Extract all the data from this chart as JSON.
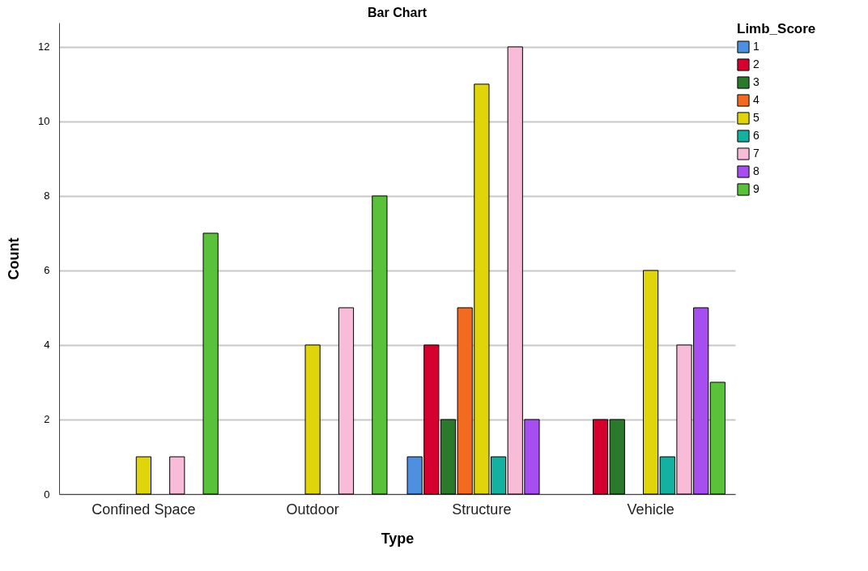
{
  "chart_data": {
    "type": "bar",
    "title": "Bar Chart",
    "xlabel": "Type",
    "ylabel": "Count",
    "legend_title": "Limb_Score",
    "categories": [
      "Confined Space",
      "Outdoor",
      "Structure",
      "Vehicle"
    ],
    "series": [
      {
        "name": "1",
        "color": "#4f8fe0",
        "values": [
          null,
          null,
          1,
          null
        ]
      },
      {
        "name": "2",
        "color": "#d6002f",
        "values": [
          null,
          null,
          4,
          2
        ]
      },
      {
        "name": "3",
        "color": "#2b7a2b",
        "values": [
          null,
          null,
          2,
          2
        ]
      },
      {
        "name": "4",
        "color": "#f26b21",
        "values": [
          null,
          null,
          5,
          null
        ]
      },
      {
        "name": "5",
        "color": "#e0d40a",
        "values": [
          1,
          4,
          11,
          6
        ]
      },
      {
        "name": "6",
        "color": "#14b0a0",
        "values": [
          null,
          null,
          1,
          1
        ]
      },
      {
        "name": "7",
        "color": "#f8bcd8",
        "values": [
          1,
          5,
          12,
          4
        ]
      },
      {
        "name": "8",
        "color": "#a64ef0",
        "values": [
          null,
          null,
          2,
          5
        ]
      },
      {
        "name": "9",
        "color": "#5ac13a",
        "values": [
          7,
          8,
          null,
          3
        ]
      }
    ],
    "ylim": [
      0,
      12.65
    ],
    "yticks": [
      0,
      2,
      4,
      6,
      8,
      10,
      12
    ],
    "grid": "y",
    "legend": "top right"
  }
}
